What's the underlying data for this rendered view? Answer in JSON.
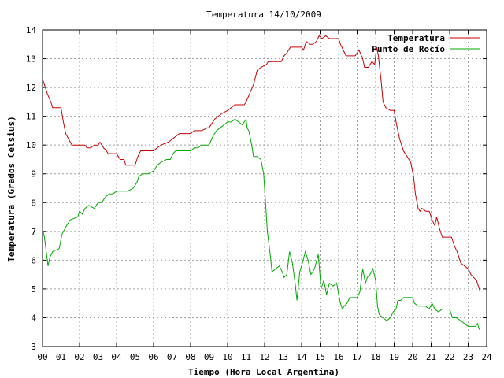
{
  "chart_data": {
    "type": "line",
    "title": "Temperatura 14/10/2009",
    "xlabel": "Tiempo (Hora Local Argentina)",
    "ylabel": "Temperatura (Grados Celsius)",
    "xlim": [
      0,
      24
    ],
    "ylim": [
      3,
      14
    ],
    "xticks": [
      "00",
      "01",
      "02",
      "03",
      "04",
      "05",
      "06",
      "07",
      "08",
      "09",
      "10",
      "11",
      "12",
      "13",
      "14",
      "15",
      "16",
      "17",
      "18",
      "19",
      "20",
      "21",
      "22",
      "23",
      "24"
    ],
    "yticks": [
      3,
      4,
      5,
      6,
      7,
      8,
      9,
      10,
      11,
      12,
      13,
      14
    ],
    "grid": true,
    "legend_position": "top-right",
    "series": [
      {
        "name": "Temperatura",
        "color": "#cc0000",
        "points": [
          [
            0.0,
            12.3
          ],
          [
            0.1,
            12.1
          ],
          [
            0.25,
            11.8
          ],
          [
            0.45,
            11.5
          ],
          [
            0.55,
            11.3
          ],
          [
            1.0,
            11.3
          ],
          [
            1.1,
            10.9
          ],
          [
            1.25,
            10.4
          ],
          [
            1.5,
            10.1
          ],
          [
            1.6,
            10.0
          ],
          [
            2.0,
            10.0
          ],
          [
            2.3,
            10.0
          ],
          [
            2.4,
            9.9
          ],
          [
            2.6,
            9.9
          ],
          [
            2.8,
            10.0
          ],
          [
            3.0,
            10.0
          ],
          [
            3.1,
            10.1
          ],
          [
            3.3,
            9.9
          ],
          [
            3.45,
            9.8
          ],
          [
            3.55,
            9.7
          ],
          [
            4.0,
            9.7
          ],
          [
            4.1,
            9.6
          ],
          [
            4.2,
            9.5
          ],
          [
            4.4,
            9.5
          ],
          [
            4.5,
            9.3
          ],
          [
            5.0,
            9.3
          ],
          [
            5.15,
            9.6
          ],
          [
            5.3,
            9.8
          ],
          [
            5.6,
            9.8
          ],
          [
            6.0,
            9.8
          ],
          [
            6.2,
            9.9
          ],
          [
            6.4,
            10.0
          ],
          [
            6.8,
            10.1
          ],
          [
            7.0,
            10.2
          ],
          [
            7.2,
            10.3
          ],
          [
            7.4,
            10.4
          ],
          [
            8.0,
            10.4
          ],
          [
            8.2,
            10.5
          ],
          [
            8.6,
            10.5
          ],
          [
            8.9,
            10.6
          ],
          [
            9.0,
            10.6
          ],
          [
            9.3,
            10.9
          ],
          [
            9.5,
            11.0
          ],
          [
            9.7,
            11.1
          ],
          [
            10.0,
            11.2
          ],
          [
            10.2,
            11.3
          ],
          [
            10.4,
            11.4
          ],
          [
            10.6,
            11.4
          ],
          [
            10.9,
            11.4
          ],
          [
            11.0,
            11.5
          ],
          [
            11.2,
            11.8
          ],
          [
            11.4,
            12.1
          ],
          [
            11.6,
            12.6
          ],
          [
            11.8,
            12.7
          ],
          [
            12.1,
            12.8
          ],
          [
            12.2,
            12.9
          ],
          [
            12.6,
            12.9
          ],
          [
            12.9,
            12.9
          ],
          [
            13.05,
            13.1
          ],
          [
            13.2,
            13.2
          ],
          [
            13.4,
            13.4
          ],
          [
            13.6,
            13.4
          ],
          [
            13.8,
            13.4
          ],
          [
            14.0,
            13.4
          ],
          [
            14.1,
            13.3
          ],
          [
            14.25,
            13.6
          ],
          [
            14.45,
            13.5
          ],
          [
            14.6,
            13.5
          ],
          [
            14.8,
            13.6
          ],
          [
            14.95,
            13.8
          ],
          [
            15.1,
            13.7
          ],
          [
            15.3,
            13.8
          ],
          [
            15.5,
            13.7
          ],
          [
            15.7,
            13.7
          ],
          [
            16.0,
            13.7
          ],
          [
            16.1,
            13.5
          ],
          [
            16.25,
            13.3
          ],
          [
            16.4,
            13.1
          ],
          [
            16.8,
            13.1
          ],
          [
            16.9,
            13.1
          ],
          [
            17.0,
            13.2
          ],
          [
            17.1,
            13.3
          ],
          [
            17.3,
            13.0
          ],
          [
            17.4,
            12.7
          ],
          [
            17.6,
            12.7
          ],
          [
            17.8,
            12.9
          ],
          [
            17.95,
            12.8
          ],
          [
            18.05,
            13.4
          ],
          [
            18.15,
            13.1
          ],
          [
            18.3,
            12.2
          ],
          [
            18.4,
            11.5
          ],
          [
            18.55,
            11.3
          ],
          [
            18.8,
            11.2
          ],
          [
            19.0,
            11.2
          ],
          [
            19.1,
            10.8
          ],
          [
            19.3,
            10.2
          ],
          [
            19.5,
            9.8
          ],
          [
            19.7,
            9.6
          ],
          [
            19.9,
            9.4
          ],
          [
            20.05,
            8.9
          ],
          [
            20.15,
            8.3
          ],
          [
            20.3,
            7.8
          ],
          [
            20.4,
            7.7
          ],
          [
            20.5,
            7.8
          ],
          [
            20.7,
            7.7
          ],
          [
            20.9,
            7.7
          ],
          [
            21.05,
            7.4
          ],
          [
            21.2,
            7.2
          ],
          [
            21.3,
            7.5
          ],
          [
            21.45,
            7.1
          ],
          [
            21.6,
            6.8
          ],
          [
            22.0,
            6.8
          ],
          [
            22.1,
            6.8
          ],
          [
            22.25,
            6.5
          ],
          [
            22.4,
            6.3
          ],
          [
            22.6,
            5.9
          ],
          [
            22.8,
            5.8
          ],
          [
            23.0,
            5.7
          ],
          [
            23.15,
            5.5
          ],
          [
            23.3,
            5.4
          ],
          [
            23.45,
            5.3
          ],
          [
            23.55,
            5.1
          ],
          [
            23.65,
            4.9
          ]
        ]
      },
      {
        "name": "Punto de Rocío",
        "color": "#00aa00",
        "points": [
          [
            0.0,
            7.1
          ],
          [
            0.1,
            6.8
          ],
          [
            0.2,
            6.3
          ],
          [
            0.3,
            5.8
          ],
          [
            0.4,
            6.1
          ],
          [
            0.55,
            6.3
          ],
          [
            0.9,
            6.4
          ],
          [
            1.05,
            6.9
          ],
          [
            1.3,
            7.2
          ],
          [
            1.5,
            7.4
          ],
          [
            1.9,
            7.5
          ],
          [
            2.0,
            7.7
          ],
          [
            2.15,
            7.6
          ],
          [
            2.3,
            7.8
          ],
          [
            2.5,
            7.9
          ],
          [
            2.8,
            7.8
          ],
          [
            3.0,
            8.0
          ],
          [
            3.2,
            8.0
          ],
          [
            3.4,
            8.2
          ],
          [
            3.6,
            8.3
          ],
          [
            3.8,
            8.3
          ],
          [
            4.0,
            8.4
          ],
          [
            4.3,
            8.4
          ],
          [
            4.6,
            8.4
          ],
          [
            4.9,
            8.5
          ],
          [
            5.1,
            8.7
          ],
          [
            5.2,
            8.9
          ],
          [
            5.4,
            9.0
          ],
          [
            5.7,
            9.0
          ],
          [
            6.0,
            9.1
          ],
          [
            6.2,
            9.3
          ],
          [
            6.4,
            9.4
          ],
          [
            6.7,
            9.5
          ],
          [
            6.9,
            9.5
          ],
          [
            7.05,
            9.7
          ],
          [
            7.2,
            9.8
          ],
          [
            7.4,
            9.8
          ],
          [
            7.8,
            9.8
          ],
          [
            8.0,
            9.8
          ],
          [
            8.2,
            9.9
          ],
          [
            8.4,
            9.9
          ],
          [
            8.6,
            10.0
          ],
          [
            8.8,
            10.0
          ],
          [
            9.0,
            10.0
          ],
          [
            9.2,
            10.3
          ],
          [
            9.4,
            10.5
          ],
          [
            9.6,
            10.6
          ],
          [
            9.8,
            10.7
          ],
          [
            10.0,
            10.8
          ],
          [
            10.2,
            10.8
          ],
          [
            10.4,
            10.9
          ],
          [
            10.6,
            10.8
          ],
          [
            10.8,
            10.7
          ],
          [
            10.9,
            10.8
          ],
          [
            11.0,
            10.9
          ],
          [
            11.05,
            10.6
          ],
          [
            11.15,
            10.5
          ],
          [
            11.3,
            10.0
          ],
          [
            11.4,
            9.6
          ],
          [
            11.6,
            9.6
          ],
          [
            11.8,
            9.5
          ],
          [
            11.95,
            9.0
          ],
          [
            12.05,
            8.0
          ],
          [
            12.15,
            7.0
          ],
          [
            12.3,
            6.2
          ],
          [
            12.4,
            5.6
          ],
          [
            12.6,
            5.7
          ],
          [
            12.8,
            5.8
          ],
          [
            12.95,
            5.6
          ],
          [
            13.05,
            5.4
          ],
          [
            13.2,
            5.5
          ],
          [
            13.35,
            6.3
          ],
          [
            13.5,
            5.9
          ],
          [
            13.65,
            5.2
          ],
          [
            13.75,
            4.6
          ],
          [
            13.9,
            5.6
          ],
          [
            14.0,
            5.8
          ],
          [
            14.2,
            6.3
          ],
          [
            14.35,
            6.0
          ],
          [
            14.5,
            5.5
          ],
          [
            14.7,
            5.7
          ],
          [
            14.9,
            6.2
          ],
          [
            15.05,
            5.0
          ],
          [
            15.2,
            5.3
          ],
          [
            15.35,
            4.8
          ],
          [
            15.5,
            5.2
          ],
          [
            15.7,
            5.1
          ],
          [
            15.9,
            5.2
          ],
          [
            16.0,
            4.8
          ],
          [
            16.1,
            4.5
          ],
          [
            16.2,
            4.3
          ],
          [
            16.3,
            4.4
          ],
          [
            16.45,
            4.5
          ],
          [
            16.6,
            4.7
          ],
          [
            16.8,
            4.7
          ],
          [
            17.0,
            4.7
          ],
          [
            17.15,
            4.9
          ],
          [
            17.3,
            5.7
          ],
          [
            17.45,
            5.2
          ],
          [
            17.55,
            5.4
          ],
          [
            17.7,
            5.5
          ],
          [
            17.85,
            5.7
          ],
          [
            18.0,
            5.3
          ],
          [
            18.1,
            4.4
          ],
          [
            18.2,
            4.1
          ],
          [
            18.4,
            4.0
          ],
          [
            18.6,
            3.9
          ],
          [
            18.8,
            4.0
          ],
          [
            18.95,
            4.2
          ],
          [
            19.1,
            4.3
          ],
          [
            19.2,
            4.6
          ],
          [
            19.35,
            4.6
          ],
          [
            19.5,
            4.7
          ],
          [
            19.7,
            4.7
          ],
          [
            20.0,
            4.7
          ],
          [
            20.1,
            4.5
          ],
          [
            20.3,
            4.4
          ],
          [
            20.5,
            4.4
          ],
          [
            20.7,
            4.4
          ],
          [
            20.9,
            4.3
          ],
          [
            21.05,
            4.5
          ],
          [
            21.2,
            4.3
          ],
          [
            21.4,
            4.2
          ],
          [
            21.6,
            4.3
          ],
          [
            21.8,
            4.3
          ],
          [
            22.0,
            4.3
          ],
          [
            22.15,
            4.0
          ],
          [
            22.35,
            4.0
          ],
          [
            22.6,
            3.9
          ],
          [
            22.8,
            3.8
          ],
          [
            23.0,
            3.7
          ],
          [
            23.2,
            3.7
          ],
          [
            23.4,
            3.7
          ],
          [
            23.5,
            3.8
          ],
          [
            23.6,
            3.6
          ],
          [
            23.65,
            3.6
          ]
        ]
      }
    ]
  }
}
